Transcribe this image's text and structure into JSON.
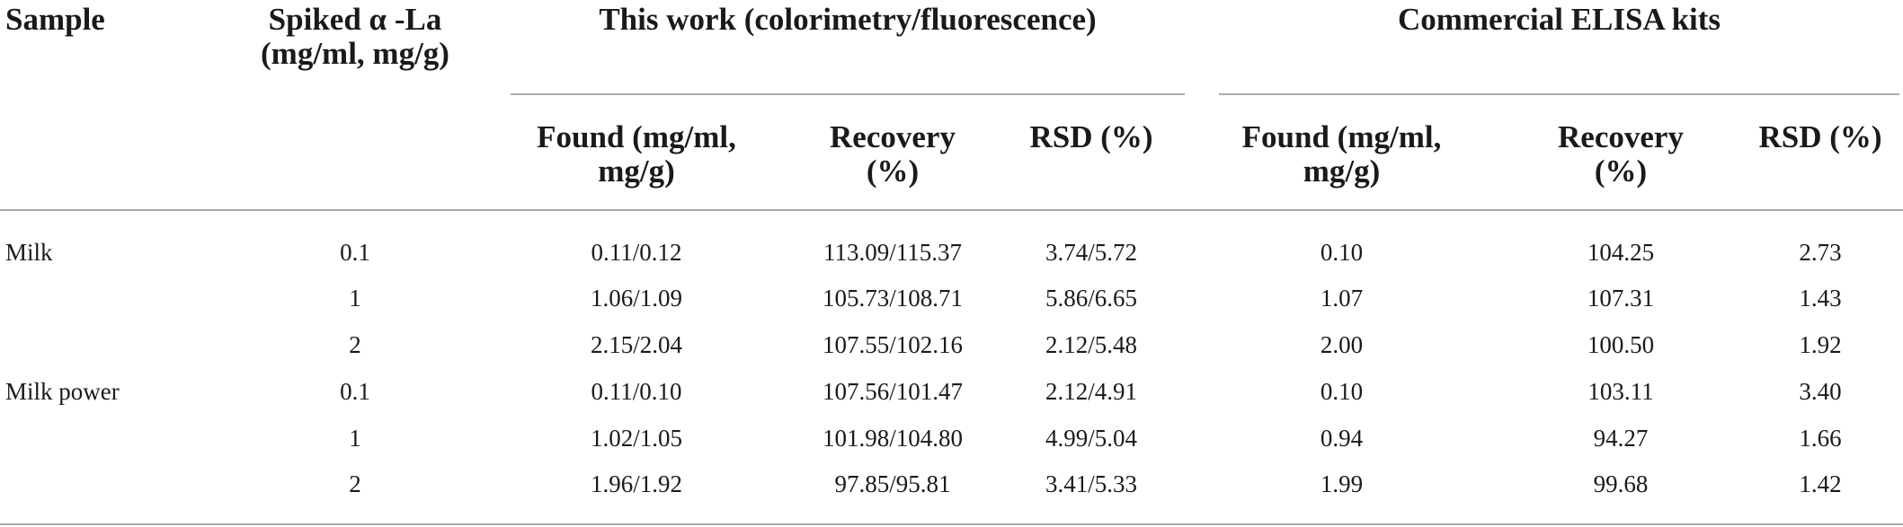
{
  "table": {
    "headers": {
      "sample": "Sample",
      "spiked_line1": "Spiked α -La",
      "spiked_line2": "(mg/ml, mg/g)",
      "group_this_work": "This work (colorimetry/fluorescence)",
      "group_elisa": "Commercial ELISA kits",
      "found_line1": "Found (mg/ml,",
      "found_line2": "mg/g)",
      "recovery_line1": "Recovery",
      "recovery_line2": "(%)",
      "rsd": "RSD (%)"
    },
    "rows": [
      {
        "sample": "Milk",
        "spiked": "0.1",
        "tw_found": "0.11/0.12",
        "tw_recovery": "113.09/115.37",
        "tw_rsd": "3.74/5.72",
        "el_found": "0.10",
        "el_recovery": "104.25",
        "el_rsd": "2.73"
      },
      {
        "sample": "",
        "spiked": "1",
        "tw_found": "1.06/1.09",
        "tw_recovery": "105.73/108.71",
        "tw_rsd": "5.86/6.65",
        "el_found": "1.07",
        "el_recovery": "107.31",
        "el_rsd": "1.43"
      },
      {
        "sample": "",
        "spiked": "2",
        "tw_found": "2.15/2.04",
        "tw_recovery": "107.55/102.16",
        "tw_rsd": "2.12/5.48",
        "el_found": "2.00",
        "el_recovery": "100.50",
        "el_rsd": "1.92"
      },
      {
        "sample": "Milk power",
        "spiked": "0.1",
        "tw_found": "0.11/0.10",
        "tw_recovery": "107.56/101.47",
        "tw_rsd": "2.12/4.91",
        "el_found": "0.10",
        "el_recovery": "103.11",
        "el_rsd": "3.40"
      },
      {
        "sample": "",
        "spiked": "1",
        "tw_found": "1.02/1.05",
        "tw_recovery": "101.98/104.80",
        "tw_rsd": "4.99/5.04",
        "el_found": "0.94",
        "el_recovery": "94.27",
        "el_rsd": "1.66"
      },
      {
        "sample": "",
        "spiked": "2",
        "tw_found": "1.96/1.92",
        "tw_recovery": "97.85/95.81",
        "tw_rsd": "3.41/5.33",
        "el_found": "1.99",
        "el_recovery": "99.68",
        "el_rsd": "1.42"
      }
    ]
  }
}
